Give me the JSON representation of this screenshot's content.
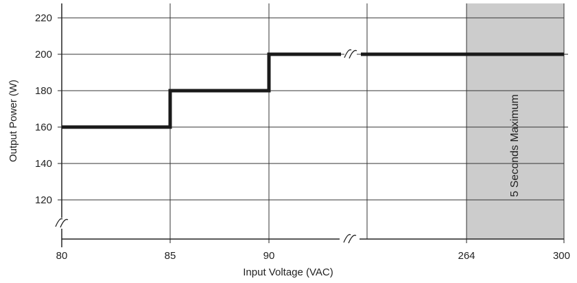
{
  "chart_data": {
    "type": "line",
    "title": "",
    "xlabel": "Input Voltage (VAC)",
    "ylabel": "Output Power (W)",
    "x_tick_labels": [
      "80",
      "85",
      "90",
      "264",
      "300"
    ],
    "y_tick_labels": [
      "120",
      "140",
      "160",
      "180",
      "200",
      "220"
    ],
    "ylim": [
      110,
      225
    ],
    "grid": true,
    "axis_breaks": [
      "x between 90 and 264",
      "y below 120"
    ],
    "series": [
      {
        "points": [
          {
            "x": 80,
            "y": 160
          },
          {
            "x": 85,
            "y": 160
          },
          {
            "x": 85,
            "y": 180
          },
          {
            "x": 90,
            "y": 180
          },
          {
            "x": 90,
            "y": 200
          },
          {
            "x": 300,
            "y": 200
          }
        ],
        "color": "#1a1a1a"
      }
    ],
    "shaded_region": {
      "x_from": 264,
      "x_to": 300,
      "label": "5 Seconds Maximum",
      "color": "#cccccc"
    }
  }
}
